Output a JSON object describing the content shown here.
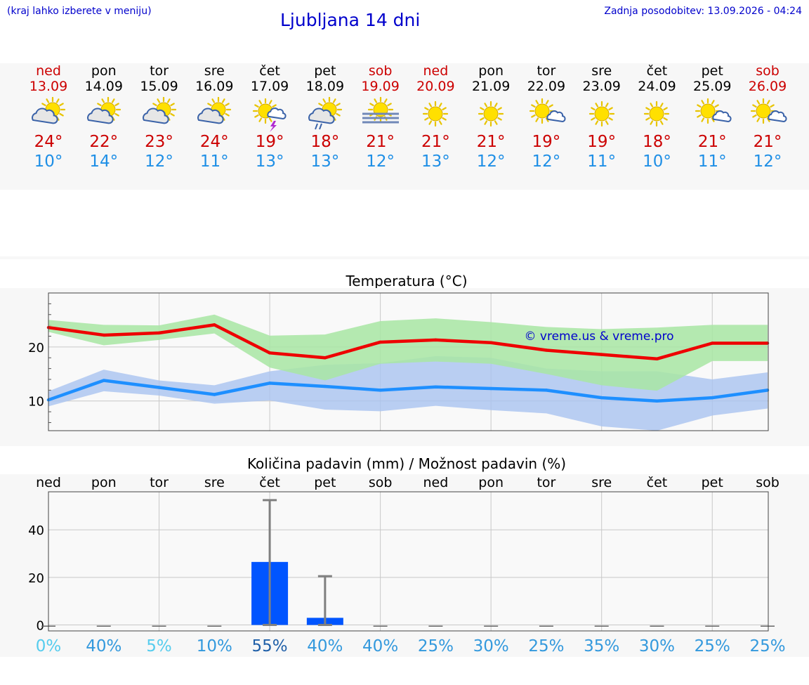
{
  "header": {
    "note": "(kraj lahko izberete v meniju)",
    "title": "Ljubljana 14 dni",
    "updated": "Zadnja posodobitev: 13.09.2026 - 04:24"
  },
  "days": [
    {
      "name": "ned",
      "date": "13.09",
      "weekend": true,
      "icon": "sun-cloud-icon",
      "max": "24°",
      "min": "10°"
    },
    {
      "name": "pon",
      "date": "14.09",
      "weekend": false,
      "icon": "sun-cloud-icon",
      "max": "22°",
      "min": "14°"
    },
    {
      "name": "tor",
      "date": "15.09",
      "weekend": false,
      "icon": "sun-cloud-icon",
      "max": "23°",
      "min": "12°"
    },
    {
      "name": "sre",
      "date": "16.09",
      "weekend": false,
      "icon": "sun-cloud-icon",
      "max": "24°",
      "min": "11°"
    },
    {
      "name": "čet",
      "date": "17.09",
      "weekend": false,
      "icon": "sun-thunderstorm-icon",
      "max": "19°",
      "min": "13°"
    },
    {
      "name": "pet",
      "date": "18.09",
      "weekend": false,
      "icon": "sun-rain-icon",
      "max": "18°",
      "min": "13°"
    },
    {
      "name": "sob",
      "date": "19.09",
      "weekend": true,
      "icon": "sun-fog-icon",
      "max": "21°",
      "min": "12°"
    },
    {
      "name": "ned",
      "date": "20.09",
      "weekend": true,
      "icon": "sun-icon",
      "max": "21°",
      "min": "13°"
    },
    {
      "name": "pon",
      "date": "21.09",
      "weekend": false,
      "icon": "sun-icon",
      "max": "21°",
      "min": "12°"
    },
    {
      "name": "tor",
      "date": "22.09",
      "weekend": false,
      "icon": "sun-small-cloud-icon",
      "max": "19°",
      "min": "12°"
    },
    {
      "name": "sre",
      "date": "23.09",
      "weekend": false,
      "icon": "sun-icon",
      "max": "19°",
      "min": "11°"
    },
    {
      "name": "čet",
      "date": "24.09",
      "weekend": false,
      "icon": "sun-icon",
      "max": "18°",
      "min": "10°"
    },
    {
      "name": "pet",
      "date": "25.09",
      "weekend": false,
      "icon": "sun-small-cloud-icon",
      "max": "21°",
      "min": "11°"
    },
    {
      "name": "sob",
      "date": "26.09",
      "weekend": true,
      "icon": "sun-small-cloud-icon",
      "max": "21°",
      "min": "12°"
    }
  ],
  "colors": {
    "weekend": "#cc0000",
    "max_line": "#ee0000",
    "max_band": "#a8e6a3",
    "min_line": "#1e8fff",
    "min_band": "#a9c3f0",
    "bar": "#0055ff",
    "whisker": "#808080"
  },
  "chart_data": [
    {
      "type": "line",
      "title": "Temperatura (°C)",
      "watermark": "© vreme.us & vreme.pro",
      "x": [
        "13.09",
        "14.09",
        "15.09",
        "16.09",
        "17.09",
        "18.09",
        "19.09",
        "20.09",
        "21.09",
        "22.09",
        "23.09",
        "24.09",
        "25.09",
        "26.09"
      ],
      "ylim": [
        4.5,
        30
      ],
      "yticks": [
        10,
        20
      ],
      "grid": true,
      "series": [
        {
          "role": "max",
          "values": [
            23.6,
            22.2,
            22.6,
            24.1,
            18.9,
            18.0,
            20.9,
            21.3,
            20.8,
            19.4,
            18.6,
            17.8,
            20.7,
            20.7
          ],
          "band_low": [
            22.8,
            20.3,
            21.3,
            22.5,
            16.2,
            13.8,
            16.9,
            17.3,
            16.9,
            15.0,
            12.9,
            11.9,
            17.4,
            17.4
          ],
          "band_high": [
            25.0,
            24.1,
            24.0,
            26.0,
            22.1,
            22.3,
            24.8,
            25.3,
            24.6,
            23.7,
            23.3,
            23.6,
            24.1,
            24.1
          ]
        },
        {
          "role": "min",
          "values": [
            10.2,
            13.8,
            12.5,
            11.2,
            13.3,
            12.7,
            12.0,
            12.6,
            12.3,
            12.0,
            10.6,
            10.0,
            10.6,
            12.0
          ],
          "band_low": [
            9.0,
            11.8,
            11.0,
            9.5,
            10.1,
            8.4,
            8.1,
            9.1,
            8.3,
            7.7,
            5.3,
            4.5,
            7.3,
            8.6
          ],
          "band_high": [
            11.8,
            15.8,
            13.8,
            12.9,
            15.5,
            16.7,
            17.0,
            18.3,
            18.0,
            16.0,
            15.5,
            15.5,
            14.0,
            15.3
          ]
        }
      ]
    },
    {
      "type": "bar",
      "title": "Količina padavin (mm) / Možnost padavin (%)",
      "categories": [
        "ned",
        "pon",
        "tor",
        "sre",
        "čet",
        "pet",
        "sob",
        "ned",
        "pon",
        "tor",
        "sre",
        "čet",
        "pet",
        "sob"
      ],
      "values": [
        0,
        0,
        0,
        0,
        26.5,
        3.0,
        0,
        0,
        0,
        0,
        0,
        0,
        0,
        0
      ],
      "error_high": [
        0,
        0,
        0,
        0,
        52.5,
        20.5,
        0,
        0,
        0,
        0,
        0,
        0,
        0,
        0
      ],
      "probability": [
        "0%",
        "40%",
        "5%",
        "10%",
        "55%",
        "40%",
        "40%",
        "25%",
        "30%",
        "25%",
        "35%",
        "30%",
        "25%",
        "25%"
      ],
      "probability_values": [
        0,
        40,
        5,
        10,
        55,
        40,
        40,
        25,
        30,
        25,
        35,
        30,
        25,
        25
      ],
      "ylim": [
        -2.5,
        56
      ],
      "yticks": [
        0,
        20,
        40
      ],
      "grid": true
    }
  ]
}
